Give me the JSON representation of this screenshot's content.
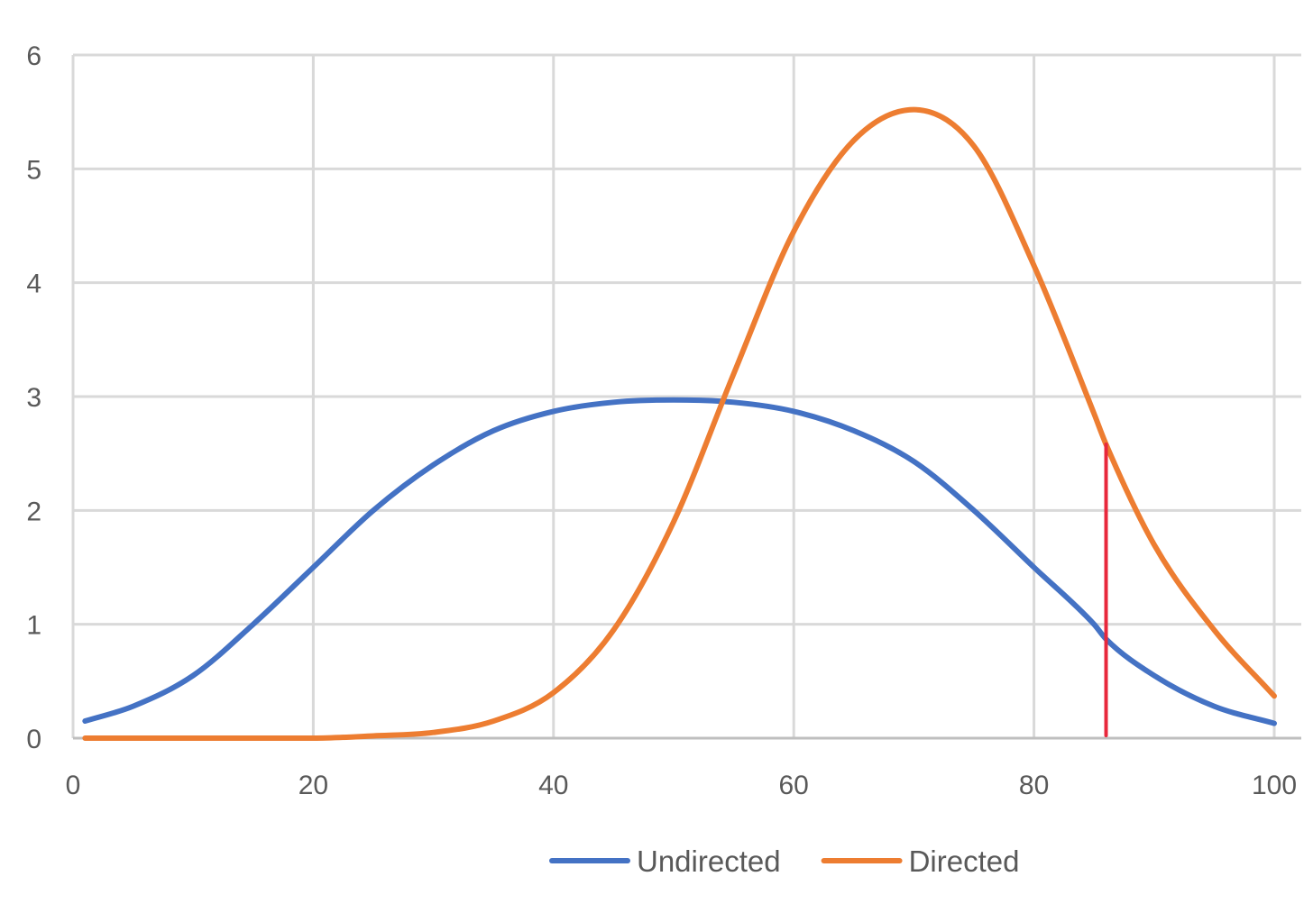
{
  "chart_data": {
    "type": "line",
    "title": "",
    "xlabel": "",
    "ylabel": "",
    "xlim": [
      0,
      100
    ],
    "ylim": [
      0,
      6
    ],
    "x_ticks": [
      0,
      20,
      40,
      60,
      80,
      100
    ],
    "y_ticks": [
      0,
      1,
      2,
      3,
      4,
      5,
      6
    ],
    "x_tick_labels": [
      "0",
      "20",
      "40",
      "60",
      "80",
      "100"
    ],
    "y_tick_labels": [
      "0",
      "1",
      "2",
      "3",
      "4",
      "5",
      "6"
    ],
    "grid": true,
    "legend_position": "bottom",
    "series": [
      {
        "name": "Undirected",
        "color": "#4472c4",
        "x": [
          1,
          5,
          10,
          15,
          20,
          25,
          30,
          35,
          40,
          45,
          50,
          55,
          60,
          65,
          70,
          75,
          80,
          85,
          86,
          90,
          95,
          100
        ],
        "y": [
          0.15,
          0.28,
          0.55,
          1.0,
          1.5,
          2.0,
          2.4,
          2.7,
          2.87,
          2.95,
          2.97,
          2.95,
          2.87,
          2.7,
          2.43,
          2.0,
          1.5,
          1.0,
          0.87,
          0.55,
          0.28,
          0.13
        ]
      },
      {
        "name": "Directed",
        "color": "#ed7d31",
        "x": [
          1,
          10,
          20,
          25,
          30,
          35,
          40,
          45,
          50,
          55,
          60,
          65,
          70,
          75,
          80,
          85,
          86,
          90,
          95,
          100
        ],
        "y": [
          0.0,
          0.0,
          0.0,
          0.02,
          0.05,
          0.15,
          0.4,
          0.95,
          1.9,
          3.2,
          4.45,
          5.25,
          5.52,
          5.2,
          4.15,
          2.85,
          2.58,
          1.7,
          0.95,
          0.37
        ]
      }
    ],
    "markers": [
      {
        "type": "vertical-line",
        "x": 86,
        "y_from": 0,
        "y_to": 2.58,
        "color": "#e8283c"
      }
    ]
  }
}
